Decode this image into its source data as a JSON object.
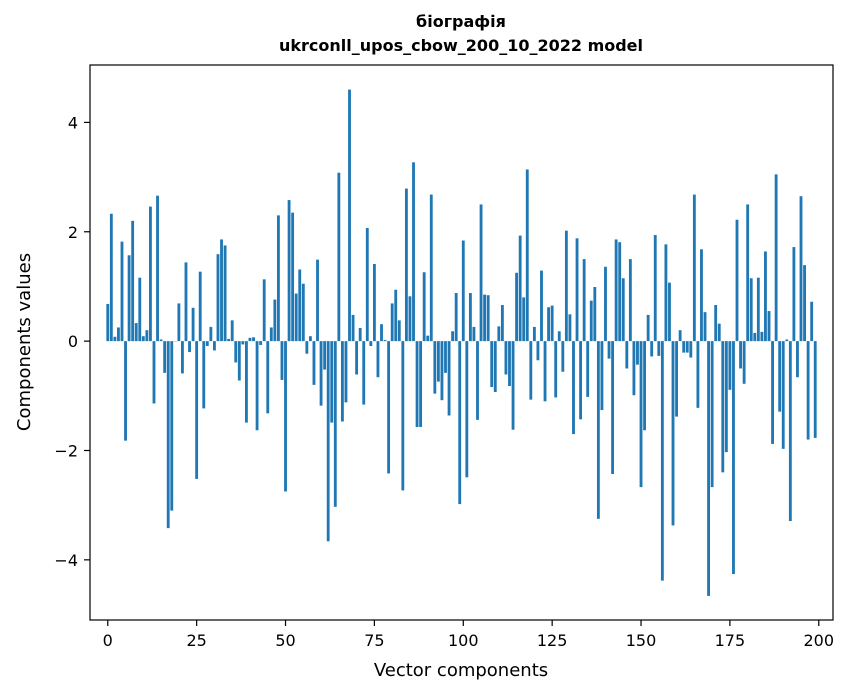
{
  "chart_data": {
    "type": "bar",
    "title": "біографія",
    "subtitle": "ukrconll_upos_cbow_200_10_2022 model",
    "xlabel": "Vector components",
    "ylabel": "Components values",
    "xlim": [
      -5,
      204
    ],
    "ylim": [
      -5.1,
      5.05
    ],
    "xticks": [
      0,
      25,
      50,
      75,
      100,
      125,
      150,
      175,
      200
    ],
    "yticks": [
      -4,
      -2,
      0,
      2,
      4
    ],
    "grid": false,
    "bar_color": "#1f77b4",
    "x": [
      0,
      1,
      2,
      3,
      4,
      5,
      6,
      7,
      8,
      9,
      10,
      11,
      12,
      13,
      14,
      15,
      16,
      17,
      18,
      19,
      20,
      21,
      22,
      23,
      24,
      25,
      26,
      27,
      28,
      29,
      30,
      31,
      32,
      33,
      34,
      35,
      36,
      37,
      38,
      39,
      40,
      41,
      42,
      43,
      44,
      45,
      46,
      47,
      48,
      49,
      50,
      51,
      52,
      53,
      54,
      55,
      56,
      57,
      58,
      59,
      60,
      61,
      62,
      63,
      64,
      65,
      66,
      67,
      68,
      69,
      70,
      71,
      72,
      73,
      74,
      75,
      76,
      77,
      78,
      79,
      80,
      81,
      82,
      83,
      84,
      85,
      86,
      87,
      88,
      89,
      90,
      91,
      92,
      93,
      94,
      95,
      96,
      97,
      98,
      99,
      100,
      101,
      102,
      103,
      104,
      105,
      106,
      107,
      108,
      109,
      110,
      111,
      112,
      113,
      114,
      115,
      116,
      117,
      118,
      119,
      120,
      121,
      122,
      123,
      124,
      125,
      126,
      127,
      128,
      129,
      130,
      131,
      132,
      133,
      134,
      135,
      136,
      137,
      138,
      139,
      140,
      141,
      142,
      143,
      144,
      145,
      146,
      147,
      148,
      149,
      150,
      151,
      152,
      153,
      154,
      155,
      156,
      157,
      158,
      159,
      160,
      161,
      162,
      163,
      164,
      165,
      166,
      167,
      168,
      169,
      170,
      171,
      172,
      173,
      174,
      175,
      176,
      177,
      178,
      179,
      180,
      181,
      182,
      183,
      184,
      185,
      186,
      187,
      188,
      189,
      190,
      191,
      192,
      193,
      194,
      195,
      196,
      197,
      198,
      199
    ],
    "values": [
      0.68,
      2.33,
      0.08,
      0.25,
      1.82,
      -1.82,
      1.57,
      2.2,
      0.33,
      1.16,
      0.09,
      0.2,
      2.46,
      -1.14,
      2.66,
      0.03,
      -0.58,
      -3.42,
      -3.1,
      0.0,
      0.69,
      -0.59,
      1.44,
      -0.2,
      0.61,
      -2.52,
      1.27,
      -1.23,
      -0.09,
      0.26,
      -0.17,
      1.59,
      1.86,
      1.75,
      0.04,
      0.38,
      -0.39,
      -0.72,
      -0.06,
      -1.49,
      0.06,
      0.07,
      -1.63,
      -0.07,
      1.13,
      -1.32,
      0.25,
      0.76,
      2.3,
      -0.71,
      -2.75,
      2.58,
      2.35,
      0.87,
      1.31,
      1.05,
      -0.23,
      0.09,
      -0.8,
      1.49,
      -1.18,
      -0.52,
      -3.66,
      -1.49,
      -3.03,
      3.08,
      -1.47,
      -1.12,
      4.6,
      0.48,
      -0.61,
      0.24,
      -1.16,
      2.07,
      -0.09,
      1.41,
      -0.66,
      0.31,
      0.02,
      -2.42,
      0.69,
      0.94,
      0.38,
      -2.73,
      2.79,
      0.82,
      3.27,
      -1.57,
      -1.57,
      1.26,
      0.1,
      2.68,
      -0.96,
      -0.74,
      -1.08,
      -0.58,
      -1.36,
      0.18,
      0.88,
      -2.98,
      1.84,
      -2.49,
      0.88,
      0.26,
      -1.44,
      2.5,
      0.85,
      0.84,
      -0.84,
      -0.93,
      0.27,
      0.66,
      -0.61,
      -0.82,
      -1.62,
      1.25,
      1.93,
      0.8,
      3.14,
      -1.07,
      0.26,
      -0.35,
      1.29,
      -1.1,
      0.62,
      0.65,
      -1.03,
      0.18,
      -0.56,
      2.02,
      0.49,
      -1.7,
      1.88,
      -1.43,
      1.5,
      -1.02,
      0.74,
      0.99,
      -3.25,
      -1.26,
      1.36,
      -0.32,
      -2.43,
      1.86,
      1.81,
      1.15,
      -0.5,
      1.5,
      -0.99,
      -0.43,
      -2.67,
      -1.63,
      0.48,
      -0.28,
      1.94,
      -0.27,
      -4.38,
      1.77,
      1.07,
      -3.37,
      -1.38,
      0.2,
      -0.21,
      -0.21,
      -0.3,
      2.68,
      -1.22,
      1.68,
      0.53,
      -4.66,
      -2.67,
      0.66,
      0.32,
      -2.4,
      -2.03,
      -0.89,
      -4.26,
      2.22,
      -0.5,
      -0.78,
      2.5,
      1.15,
      0.15,
      1.16,
      0.17,
      1.64,
      0.55,
      -1.88,
      3.05,
      -1.29,
      -1.97,
      0.03,
      -3.29,
      1.72,
      -0.66,
      2.65,
      1.39,
      -1.8,
      0.72,
      -1.77
    ]
  }
}
